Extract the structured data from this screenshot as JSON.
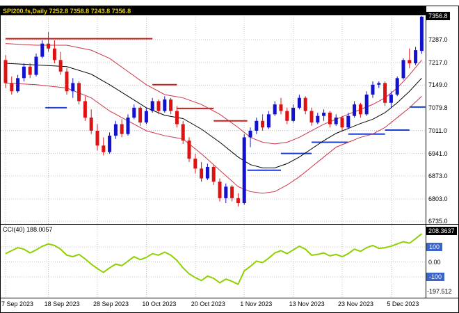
{
  "title": {
    "text": "SPI200.fs,Daily 7252.8 7358.8 7243.8 7356.8"
  },
  "colors": {
    "bull": "#1212cc",
    "bear": "#dd1212",
    "ma_mid": "#000000",
    "band": "#cc3344",
    "trend_up": "#1a3fd0",
    "trend_down": "#d01a1a",
    "cci_line": "#90d000",
    "grid": "#c4c4c4",
    "title_bg": "#000000",
    "title_text": "#e8cf00",
    "price_marker_bg": "#000000",
    "price_marker_text": "#ffffff",
    "level_box_bg": "#3a64c8",
    "level_box_text": "#ffffff",
    "border": "#000000"
  },
  "price_axis": {
    "current": {
      "label": "7356.8",
      "price": 7356.8
    },
    "ticks": [
      {
        "label": "7287.0",
        "price": 7287.0
      },
      {
        "label": "7217.0",
        "price": 7217.0
      },
      {
        "label": "7149.0",
        "price": 7149.0
      },
      {
        "label": "7079.8",
        "price": 7079.8
      },
      {
        "label": "7011.0",
        "price": 7011.0
      },
      {
        "label": "6941.0",
        "price": 6941.0
      },
      {
        "label": "6873.0",
        "price": 6873.0
      },
      {
        "label": "6803.0",
        "price": 6803.0
      },
      {
        "label": "6735.0",
        "price": 6735.0
      }
    ]
  },
  "date_axis": {
    "labels": [
      {
        "text": "7 Sep 2023",
        "index": 0
      },
      {
        "text": "18 Sep 2023",
        "index": 7
      },
      {
        "text": "28 Sep 2023",
        "index": 15
      },
      {
        "text": "10 Oct 2023",
        "index": 23
      },
      {
        "text": "20 Oct 2023",
        "index": 31
      },
      {
        "text": "1 Nov 2023",
        "index": 39
      },
      {
        "text": "13 Nov 2023",
        "index": 47
      },
      {
        "text": "23 Nov 2023",
        "index": 55
      },
      {
        "text": "5 Dec 2023",
        "index": 63
      }
    ]
  },
  "indicator": {
    "name_label": "CCI(40) 188.0057",
    "period": 40,
    "current_value": 188.0057,
    "max": {
      "label": "208.3637",
      "value": 208.3637
    },
    "min": {
      "label": "-197.512",
      "value": -197.512
    },
    "levels": [
      {
        "label": "100",
        "value": 100,
        "boxed": true
      },
      {
        "label": "0.00",
        "value": 0,
        "boxed": false
      },
      {
        "label": "-100",
        "value": -100,
        "boxed": true
      }
    ]
  },
  "chart_data": {
    "type": "candlestick",
    "symbol": "SPI200.fs",
    "timeframe": "Daily",
    "current_bar_ohlc": {
      "open": 7252.8,
      "high": 7358.8,
      "low": 7243.8,
      "close": 7356.8
    },
    "ylim": [
      6735.0,
      7388.0
    ],
    "candles": [
      [
        7225,
        7240,
        7140,
        7155
      ],
      [
        7155,
        7175,
        7120,
        7130
      ],
      [
        7130,
        7180,
        7125,
        7170
      ],
      [
        7170,
        7215,
        7160,
        7205
      ],
      [
        7205,
        7215,
        7170,
        7180
      ],
      [
        7180,
        7245,
        7175,
        7235
      ],
      [
        7235,
        7285,
        7230,
        7275
      ],
      [
        7275,
        7310,
        7250,
        7260
      ],
      [
        7260,
        7285,
        7215,
        7225
      ],
      [
        7225,
        7250,
        7180,
        7190
      ],
      [
        7190,
        7200,
        7120,
        7130
      ],
      [
        7130,
        7170,
        7110,
        7155
      ],
      [
        7155,
        7160,
        7090,
        7100
      ],
      [
        7100,
        7115,
        7040,
        7050
      ],
      [
        7050,
        7075,
        7000,
        7010
      ],
      [
        7010,
        7030,
        6950,
        6965
      ],
      [
        6965,
        6990,
        6935,
        6945
      ],
      [
        6945,
        7005,
        6940,
        6995
      ],
      [
        6995,
        7040,
        6985,
        7030
      ],
      [
        7030,
        7045,
        6990,
        7000
      ],
      [
        7000,
        7060,
        6995,
        7050
      ],
      [
        7050,
        7090,
        7045,
        7080
      ],
      [
        7080,
        7085,
        7025,
        7035
      ],
      [
        7035,
        7080,
        7030,
        7070
      ],
      [
        7070,
        7110,
        7065,
        7100
      ],
      [
        7100,
        7105,
        7060,
        7070
      ],
      [
        7070,
        7115,
        7065,
        7105
      ],
      [
        7105,
        7110,
        7060,
        7070
      ],
      [
        7070,
        7085,
        7020,
        7030
      ],
      [
        7030,
        7040,
        6970,
        6980
      ],
      [
        6980,
        6990,
        6915,
        6925
      ],
      [
        6925,
        6940,
        6880,
        6895
      ],
      [
        6895,
        6915,
        6855,
        6865
      ],
      [
        6865,
        6910,
        6860,
        6900
      ],
      [
        6900,
        6905,
        6845,
        6855
      ],
      [
        6855,
        6865,
        6795,
        6805
      ],
      [
        6805,
        6850,
        6790,
        6840
      ],
      [
        6840,
        6845,
        6795,
        6805
      ],
      [
        6805,
        6820,
        6780,
        6790
      ],
      [
        6790,
        7000,
        6785,
        6990
      ],
      [
        6990,
        7020,
        6960,
        7010
      ],
      [
        7010,
        7050,
        7000,
        7040
      ],
      [
        7040,
        7060,
        7010,
        7020
      ],
      [
        7020,
        7070,
        7015,
        7060
      ],
      [
        7060,
        7100,
        7055,
        7090
      ],
      [
        7090,
        7110,
        7060,
        7070
      ],
      [
        7070,
        7080,
        7030,
        7040
      ],
      [
        7040,
        7090,
        7035,
        7080
      ],
      [
        7080,
        7120,
        7075,
        7110
      ],
      [
        7110,
        7115,
        7060,
        7070
      ],
      [
        7070,
        7080,
        7025,
        7035
      ],
      [
        7035,
        7065,
        7030,
        7055
      ],
      [
        7055,
        7075,
        7040,
        7065
      ],
      [
        7065,
        7070,
        7020,
        7030
      ],
      [
        7030,
        7060,
        7025,
        7050
      ],
      [
        7050,
        7055,
        7010,
        7020
      ],
      [
        7020,
        7065,
        7015,
        7055
      ],
      [
        7055,
        7100,
        7050,
        7090
      ],
      [
        7090,
        7095,
        7050,
        7060
      ],
      [
        7060,
        7130,
        7055,
        7120
      ],
      [
        7120,
        7160,
        7110,
        7150
      ],
      [
        7150,
        7160,
        7140,
        7155
      ],
      [
        7155,
        7160,
        7085,
        7095
      ],
      [
        7095,
        7130,
        7080,
        7120
      ],
      [
        7120,
        7175,
        7115,
        7170
      ],
      [
        7170,
        7230,
        7165,
        7225
      ],
      [
        7225,
        7260,
        7200,
        7215
      ],
      [
        7215,
        7265,
        7210,
        7255
      ],
      [
        7252.8,
        7358.8,
        7243.8,
        7356.8
      ]
    ],
    "overlays": {
      "ma_x": [
        0,
        5,
        10,
        14,
        17,
        20,
        23,
        26,
        29,
        32,
        35,
        38,
        40,
        42,
        44,
        46,
        48,
        50,
        52,
        54,
        56,
        58,
        60,
        62,
        64,
        66,
        68
      ],
      "ma_mid": [
        7215,
        7210,
        7205,
        7182,
        7150,
        7115,
        7080,
        7057,
        7047,
        7015,
        6975,
        6930,
        6907,
        6897,
        6897,
        6910,
        6930,
        6955,
        6980,
        7002,
        7017,
        7032,
        7045,
        7065,
        7095,
        7130,
        7170
      ],
      "band_upper": [
        7275,
        7270,
        7270,
        7255,
        7230,
        7190,
        7150,
        7120,
        7110,
        7090,
        7060,
        7020,
        6990,
        6975,
        6970,
        6975,
        6990,
        7010,
        7030,
        7045,
        7060,
        7075,
        7090,
        7110,
        7140,
        7180,
        7225
      ],
      "band_lower": [
        7155,
        7150,
        7140,
        7110,
        7070,
        7040,
        7010,
        6995,
        6985,
        6940,
        6890,
        6840,
        6825,
        6820,
        6825,
        6845,
        6870,
        6900,
        6930,
        6960,
        6975,
        6990,
        7000,
        7020,
        7050,
        7080,
        7115
      ],
      "trend_down_segments": [
        {
          "from": 0,
          "to": 24,
          "price": 7290
        },
        {
          "from": 24,
          "to": 28,
          "price": 7150
        },
        {
          "from": 28,
          "to": 34,
          "price": 7078
        },
        {
          "from": 34,
          "to": 39.5,
          "price": 7040
        }
      ],
      "trend_up_segments": [
        {
          "from": 6.5,
          "to": 10,
          "price": 7080
        },
        {
          "from": 39.5,
          "to": 45,
          "price": 6890
        },
        {
          "from": 45,
          "to": 50,
          "price": 6941
        },
        {
          "from": 50,
          "to": 56,
          "price": 6975
        },
        {
          "from": 56,
          "to": 62,
          "price": 7000
        },
        {
          "from": 62,
          "to": 66,
          "price": 7012
        },
        {
          "from": 66,
          "to": 68.6,
          "price": 7082
        }
      ]
    },
    "cci": {
      "period": 40,
      "current": 188.0057,
      "values": [
        55,
        75,
        95,
        85,
        60,
        80,
        105,
        120,
        110,
        85,
        45,
        35,
        50,
        20,
        -15,
        -45,
        -70,
        -40,
        -15,
        -25,
        5,
        35,
        15,
        30,
        55,
        45,
        65,
        45,
        10,
        -40,
        -80,
        -105,
        -125,
        -95,
        -110,
        -140,
        -115,
        -130,
        -150,
        -60,
        -30,
        5,
        -5,
        25,
        60,
        75,
        55,
        80,
        105,
        85,
        45,
        50,
        60,
        40,
        50,
        35,
        55,
        85,
        70,
        95,
        110,
        90,
        95,
        105,
        120,
        135,
        125,
        155,
        188
      ]
    }
  }
}
